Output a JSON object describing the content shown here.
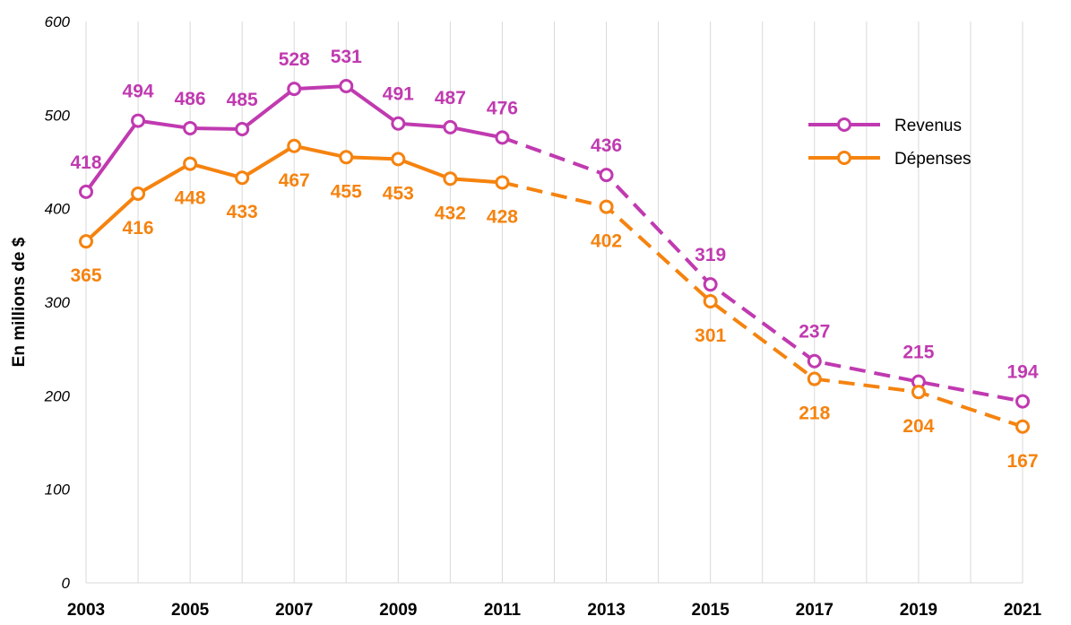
{
  "chart_data": {
    "type": "line",
    "ylabel": "En millions de $",
    "ylim": [
      0,
      600
    ],
    "yticks": [
      0,
      100,
      200,
      300,
      400,
      500,
      600
    ],
    "xlim": [
      2003,
      2021
    ],
    "xticks": [
      2003,
      2005,
      2007,
      2009,
      2011,
      2013,
      2015,
      2017,
      2019,
      2021
    ],
    "grid": "vertical",
    "legend_position": "top-right",
    "series": [
      {
        "name": "Revenus",
        "color": "#C03AB0",
        "points": [
          {
            "x": 2003,
            "y": 418
          },
          {
            "x": 2004,
            "y": 494
          },
          {
            "x": 2005,
            "y": 486
          },
          {
            "x": 2006,
            "y": 485
          },
          {
            "x": 2007,
            "y": 528
          },
          {
            "x": 2008,
            "y": 531
          },
          {
            "x": 2009,
            "y": 491
          },
          {
            "x": 2010,
            "y": 487
          },
          {
            "x": 2011,
            "y": 476
          },
          {
            "x": 2013,
            "y": 436
          },
          {
            "x": 2015,
            "y": 319
          },
          {
            "x": 2017,
            "y": 237
          },
          {
            "x": 2019,
            "y": 215
          },
          {
            "x": 2021,
            "y": 194
          }
        ],
        "dashed_from": 2011,
        "label_placement": "above"
      },
      {
        "name": "Dépenses",
        "color": "#F5830F",
        "points": [
          {
            "x": 2003,
            "y": 365
          },
          {
            "x": 2004,
            "y": 416
          },
          {
            "x": 2005,
            "y": 448
          },
          {
            "x": 2006,
            "y": 433
          },
          {
            "x": 2007,
            "y": 467
          },
          {
            "x": 2008,
            "y": 455
          },
          {
            "x": 2009,
            "y": 453
          },
          {
            "x": 2010,
            "y": 432
          },
          {
            "x": 2011,
            "y": 428
          },
          {
            "x": 2013,
            "y": 402
          },
          {
            "x": 2015,
            "y": 301
          },
          {
            "x": 2017,
            "y": 218
          },
          {
            "x": 2019,
            "y": 204
          },
          {
            "x": 2021,
            "y": 167
          }
        ],
        "dashed_from": 2011,
        "label_placement": "below"
      }
    ]
  }
}
